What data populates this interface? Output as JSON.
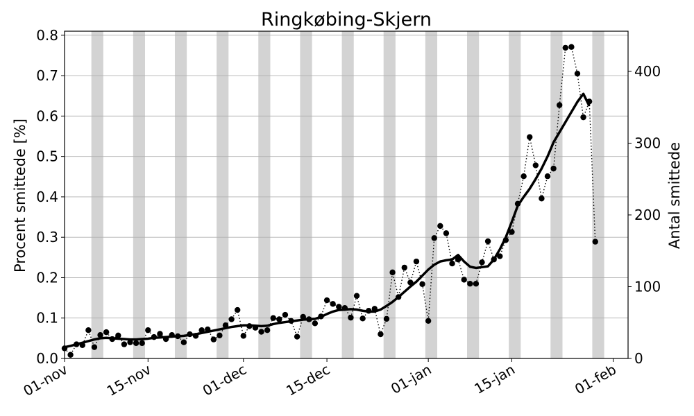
{
  "chart_data": {
    "type": "line",
    "title": "Ringkøbing-Skjern",
    "ylabel_left": "Procent smittede [%]",
    "ylabel_right": "Antal smittede",
    "ylim_left": [
      0,
      0.81
    ],
    "ylim_right": [
      0,
      456
    ],
    "xlim": [
      0,
      94.5
    ],
    "x_start_date": "2020-11-01",
    "grid": "horizontal",
    "x_ticks": [
      {
        "day": 0,
        "label": "01-nov"
      },
      {
        "day": 14,
        "label": "15-nov"
      },
      {
        "day": 30,
        "label": "01-dec"
      },
      {
        "day": 44,
        "label": "15-dec"
      },
      {
        "day": 61,
        "label": "01-jan"
      },
      {
        "day": 75,
        "label": "15-jan"
      },
      {
        "day": 92,
        "label": "01-feb"
      }
    ],
    "y_ticks_left": [
      "0.0",
      "0.1",
      "0.2",
      "0.3",
      "0.4",
      "0.5",
      "0.6",
      "0.7",
      "0.8"
    ],
    "y_ticks_left_values": [
      0,
      0.1,
      0.2,
      0.3,
      0.4,
      0.5,
      0.6,
      0.7,
      0.8
    ],
    "y_ticks_right": [
      "0",
      "100",
      "200",
      "300",
      "400"
    ],
    "y_ticks_right_values": [
      0,
      100,
      200,
      300,
      400
    ],
    "weekend_bands": [
      [
        4.5,
        6.5
      ],
      [
        11.5,
        13.5
      ],
      [
        18.5,
        20.5
      ],
      [
        25.5,
        27.5
      ],
      [
        32.5,
        34.5
      ],
      [
        39.5,
        41.5
      ],
      [
        46.5,
        48.5
      ],
      [
        53.5,
        55.5
      ],
      [
        60.5,
        62.5
      ],
      [
        67.5,
        69.5
      ],
      [
        74.5,
        76.5
      ],
      [
        81.5,
        83.5
      ],
      [
        88.5,
        90.5
      ],
      [
        95.5,
        97.5
      ]
    ],
    "series": [
      {
        "style": "dotted-markers",
        "values": [
          0.025,
          0.009,
          0.035,
          0.033,
          0.07,
          0.028,
          0.058,
          0.065,
          0.048,
          0.057,
          0.035,
          0.04,
          0.038,
          0.038,
          0.07,
          0.053,
          0.061,
          0.048,
          0.058,
          0.055,
          0.04,
          0.06,
          0.056,
          0.07,
          0.072,
          0.047,
          0.057,
          0.082,
          0.097,
          0.12,
          0.056,
          0.08,
          0.076,
          0.066,
          0.07,
          0.1,
          0.097,
          0.108,
          0.093,
          0.054,
          0.103,
          0.097,
          0.087,
          0.104,
          0.144,
          0.135,
          0.128,
          0.125,
          0.101,
          0.155,
          0.099,
          0.118,
          0.123,
          0.06,
          0.098,
          0.213,
          0.152,
          0.225,
          0.188,
          0.24,
          0.184,
          0.093,
          0.298,
          0.328,
          0.31,
          0.235,
          0.245,
          0.195,
          0.185,
          0.185,
          0.238,
          0.29,
          0.245,
          0.253,
          0.293,
          0.313,
          0.383,
          0.451,
          0.548,
          0.478,
          0.396,
          0.451,
          0.47,
          0.627,
          0.769,
          0.771,
          0.705,
          0.597,
          0.636,
          0.289
        ]
      },
      {
        "style": "solid",
        "values": [
          0.028,
          0.031,
          0.035,
          0.039,
          0.043,
          0.047,
          0.05,
          0.051,
          0.05,
          0.049,
          0.048,
          0.047,
          0.047,
          0.048,
          0.049,
          0.051,
          0.052,
          0.053,
          0.054,
          0.055,
          0.056,
          0.058,
          0.06,
          0.063,
          0.066,
          0.069,
          0.072,
          0.075,
          0.078,
          0.08,
          0.082,
          0.082,
          0.081,
          0.08,
          0.081,
          0.085,
          0.088,
          0.09,
          0.092,
          0.094,
          0.096,
          0.097,
          0.098,
          0.103,
          0.11,
          0.116,
          0.12,
          0.121,
          0.122,
          0.121,
          0.118,
          0.116,
          0.116,
          0.121,
          0.13,
          0.14,
          0.152,
          0.165,
          0.178,
          0.19,
          0.205,
          0.22,
          0.232,
          0.24,
          0.243,
          0.245,
          0.256,
          0.24,
          0.227,
          0.224,
          0.226,
          0.228,
          0.245,
          0.27,
          0.3,
          0.338,
          0.378,
          0.4,
          0.42,
          0.444,
          0.47,
          0.5,
          0.535,
          0.56,
          0.585,
          0.61,
          0.635,
          0.655,
          0.625
        ]
      }
    ]
  }
}
